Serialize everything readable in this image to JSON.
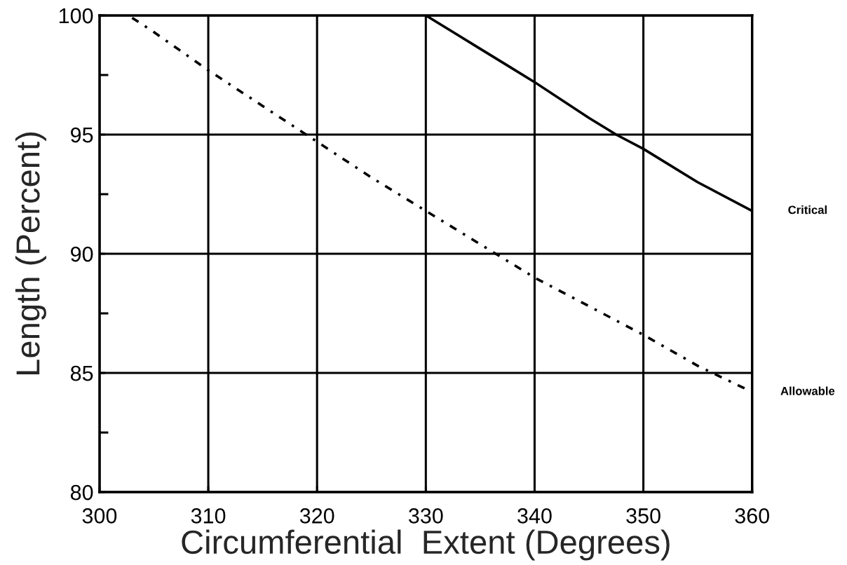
{
  "chart_data": {
    "type": "line",
    "xlabel": "Circumferential  Extent (Degrees)",
    "ylabel": "Length (Percent)",
    "xlim": [
      300,
      360
    ],
    "ylim": [
      80,
      100
    ],
    "xticks": [
      300,
      310,
      320,
      330,
      340,
      350,
      360
    ],
    "yticks": [
      80,
      {
        "value": 82.5,
        "label": null
      },
      85,
      {
        "value": 87.5,
        "label": null
      },
      90,
      {
        "value": 92.5,
        "label": null
      },
      95,
      {
        "value": 97.5,
        "label": null
      },
      100
    ],
    "grid": true,
    "series": [
      {
        "name": "Critical",
        "color": "#000000",
        "line_style": "solid",
        "x": [
          330,
          332.5,
          335,
          337.5,
          340,
          345,
          347.5,
          350,
          355,
          360
        ],
        "values": [
          100,
          99.3,
          98.6,
          97.9,
          97.2,
          95.7,
          95.0,
          94.4,
          93.0,
          91.8
        ]
      },
      {
        "name": "Allowable",
        "color": "#000000",
        "line_style": "dashdot",
        "x": [
          303,
          305,
          310,
          315,
          320,
          325,
          330,
          335,
          340,
          345,
          350,
          355,
          360
        ],
        "values": [
          99.9,
          99.3,
          97.7,
          96.2,
          94.7,
          93.2,
          91.8,
          90.4,
          89.0,
          87.8,
          86.6,
          85.3,
          84.2
        ]
      }
    ]
  }
}
